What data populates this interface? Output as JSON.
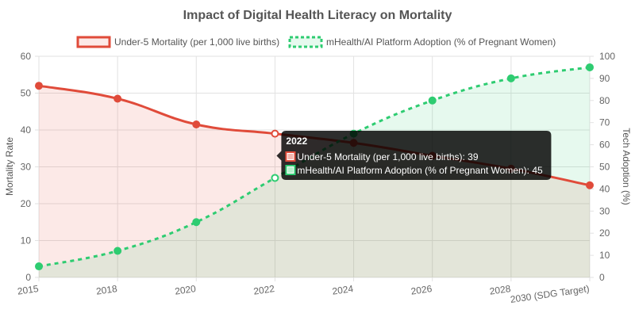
{
  "chart_data": {
    "type": "line",
    "title": "Impact of Digital Health Literacy on Mortality",
    "categories": [
      "2015",
      "2018",
      "2020",
      "2022",
      "2024",
      "2026",
      "2028",
      "2030 (SDG Target)"
    ],
    "series": [
      {
        "name": "Under-5 Mortality (per 1,000 live births)",
        "axis": "left",
        "values": [
          52,
          48.5,
          41.5,
          39,
          36.5,
          33,
          29.5,
          25
        ],
        "color": "#e04b3a",
        "fill": "rgba(231,76,60,0.12)",
        "style": "solid"
      },
      {
        "name": "mHealth/AI Platform Adoption (% of Pregnant Women)",
        "axis": "right",
        "values": [
          5,
          12,
          25,
          45,
          65,
          80,
          90,
          95
        ],
        "color": "#2ecc71",
        "fill": "rgba(46,204,113,0.12)",
        "style": "dashed"
      }
    ],
    "y_left": {
      "label": "Mortality Rate",
      "min": 0,
      "max": 60,
      "step": 10,
      "ticks": [
        "0",
        "10",
        "20",
        "30",
        "40",
        "50",
        "60"
      ]
    },
    "y_right": {
      "label": "Tech Adoption (%)",
      "min": 0,
      "max": 100,
      "step": 10,
      "ticks": [
        "0",
        "10",
        "20",
        "30",
        "40",
        "50",
        "60",
        "70",
        "80",
        "90",
        "100"
      ]
    },
    "grid": true,
    "legend_position": "top-center",
    "tooltip": {
      "title": "2022",
      "category_index": 3,
      "lines": [
        "Under-5 Mortality (per 1,000 live births): 39",
        "mHealth/AI Platform Adoption (% of Pregnant Women): 45"
      ]
    }
  }
}
